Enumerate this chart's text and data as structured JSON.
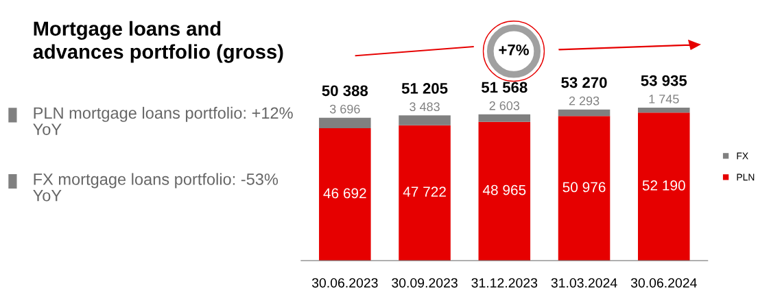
{
  "chart_data": {
    "type": "bar",
    "stacked": true,
    "title": "Mortgage loans and advances portfolio (gross)",
    "categories": [
      "30.06.2023",
      "30.09.2023",
      "31.12.2023",
      "31.03.2024",
      "30.06.2024"
    ],
    "series": [
      {
        "name": "PLN",
        "color": "#e60000",
        "values": [
          46692,
          47722,
          48965,
          50976,
          52190
        ],
        "value_labels": [
          "46 692",
          "47 722",
          "48 965",
          "50 976",
          "52 190"
        ]
      },
      {
        "name": "FX",
        "color": "#808080",
        "values": [
          3696,
          3483,
          2603,
          2293,
          1745
        ],
        "value_labels": [
          "3 696",
          "3 483",
          "2 603",
          "2 293",
          "1 745"
        ]
      }
    ],
    "totals": [
      "50 388",
      "51 205",
      "51 568",
      "53 270",
      "53 935"
    ],
    "tick_labels": "x",
    "grid": false,
    "legend": "right",
    "annotations": [
      "PLN mortgage loans portfolio: +12% YoY",
      "FX mortgage loans portfolio: -53% YoY",
      "+7%"
    ]
  }
}
